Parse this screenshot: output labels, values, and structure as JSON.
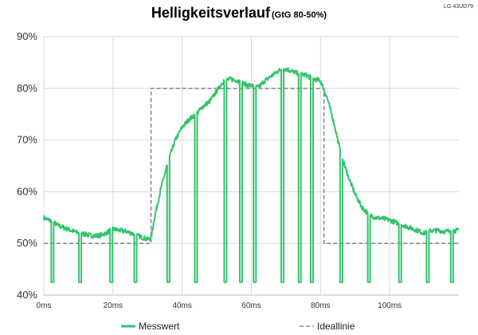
{
  "chart_data": {
    "type": "line",
    "title": "Helligkeitsverlauf",
    "subtitle": "(GtG 80-50%)",
    "corner_label": "LG 43UD79",
    "xlabel": "",
    "ylabel": "",
    "xlim": [
      0,
      120
    ],
    "ylim": [
      40,
      90
    ],
    "x_unit": "ms",
    "grid": true,
    "legend_placement": "bottom",
    "x_ticks": [
      {
        "value": 0,
        "label": "0ms"
      },
      {
        "value": 20,
        "label": "20ms"
      },
      {
        "value": 40,
        "label": "40ms"
      },
      {
        "value": 60,
        "label": "60ms"
      },
      {
        "value": 80,
        "label": "80ms"
      },
      {
        "value": 100,
        "label": "100ms"
      }
    ],
    "y_ticks": [
      {
        "value": 40,
        "label": "40%"
      },
      {
        "value": 50,
        "label": "50%"
      },
      {
        "value": 60,
        "label": "60%"
      },
      {
        "value": 70,
        "label": "70%"
      },
      {
        "value": 80,
        "label": "80%"
      },
      {
        "value": 90,
        "label": "90%"
      }
    ],
    "series": [
      {
        "name": "Messwert",
        "color": "#33c46b",
        "x": [
          0,
          1,
          2,
          3,
          4,
          6,
          8,
          10,
          12,
          14,
          16,
          18,
          20,
          22,
          24,
          26,
          28,
          30,
          31,
          32,
          33,
          34,
          35,
          36,
          37,
          38,
          40,
          42,
          44,
          46,
          48,
          50,
          52,
          54,
          56,
          58,
          60,
          62,
          64,
          66,
          68,
          70,
          72,
          74,
          76,
          78,
          80,
          82,
          84,
          86,
          88,
          90,
          92,
          94,
          96,
          98,
          100,
          102,
          104,
          106,
          108,
          110,
          112,
          114,
          116,
          118,
          120
        ],
        "y": [
          55,
          54.6,
          54.4,
          54,
          53.5,
          53,
          52.5,
          52,
          51.8,
          51.5,
          51.5,
          52,
          52.8,
          52.5,
          52.3,
          51.8,
          51.3,
          50.8,
          51,
          55,
          58,
          61,
          63.5,
          66,
          68,
          70,
          72.5,
          74,
          75,
          76.5,
          77.5,
          79.5,
          81.5,
          81.8,
          81.5,
          80.8,
          80.5,
          80.2,
          81.5,
          82.5,
          83.5,
          83.8,
          83.2,
          82.8,
          82.5,
          81.8,
          81.5,
          78,
          73,
          67,
          63,
          59.5,
          57,
          55.5,
          55,
          54.8,
          54.5,
          54,
          53.5,
          53,
          52.5,
          52,
          52.5,
          52.5,
          52.3,
          52.5,
          52.5
        ],
        "dropouts": {
          "x": [
            2.5,
            10.5,
            19.5,
            26.5,
            36,
            44,
            52.5,
            57,
            61,
            69,
            74,
            77.5,
            86,
            94,
            103,
            111,
            118
          ],
          "value": 42.5
        }
      },
      {
        "name": "Ideallinie",
        "color": "#777777",
        "x": [
          0,
          31,
          31,
          81,
          81,
          120
        ],
        "y": [
          50,
          50,
          80,
          80,
          50,
          50
        ]
      }
    ]
  }
}
